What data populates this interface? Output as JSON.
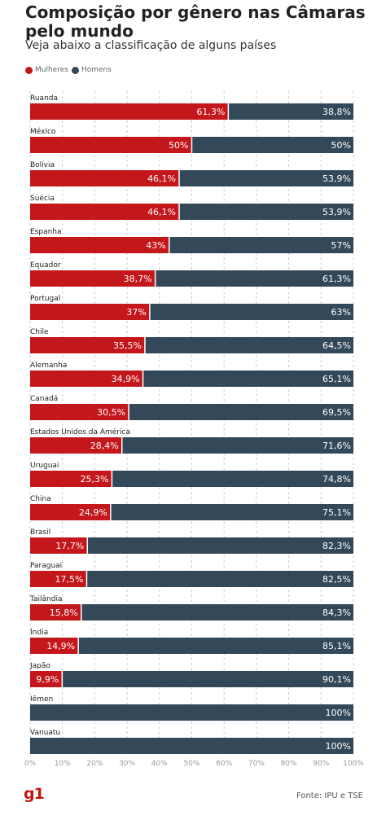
{
  "header": {
    "title": "Composição por gênero nas Câmaras pelo mundo",
    "subtitle": "Veja abaixo a classificação de alguns países"
  },
  "legend": {
    "women_label": "Mulheres",
    "men_label": "Homens"
  },
  "colors": {
    "women": "#c4171c",
    "men": "#33495a",
    "grid": "#cccccc"
  },
  "footer": {
    "logo": "g1",
    "source": "Fonte: IPU e TSE"
  },
  "chart_data": {
    "type": "bar",
    "orientation": "horizontal",
    "stacked": true,
    "title": "Composição por gênero nas Câmaras pelo mundo",
    "subtitle": "Veja abaixo a classificação de alguns países",
    "xlim": [
      0,
      100
    ],
    "x_ticks": [
      "0%",
      "10%",
      "20%",
      "30%",
      "40%",
      "50%",
      "60%",
      "70%",
      "80%",
      "90%",
      "100%"
    ],
    "grid": true,
    "legend_position": "top-left",
    "categories": [
      "Ruanda",
      "México",
      "Bolívia",
      "Suécia",
      "Espanha",
      "Equador",
      "Portugal",
      "Chile",
      "Alemanha",
      "Canadá",
      "Estados Unidos da América",
      "Uruguai",
      "China",
      "Brasil",
      "Paraguai",
      "Tailândia",
      "Índia",
      "Japão",
      "Iêmen",
      "Vanuatu"
    ],
    "series": [
      {
        "name": "Mulheres",
        "values": [
          61.3,
          50,
          46.1,
          46.1,
          43,
          38.7,
          37,
          35.5,
          34.9,
          30.5,
          28.4,
          25.3,
          24.9,
          17.7,
          17.5,
          15.8,
          14.9,
          9.9,
          0,
          0
        ],
        "labels": [
          "61,3%",
          "50%",
          "46,1%",
          "46,1%",
          "43%",
          "38,7%",
          "37%",
          "35,5%",
          "34,9%",
          "30,5%",
          "28,4%",
          "25,3%",
          "24,9%",
          "17,7%",
          "17,5%",
          "15,8%",
          "14,9%",
          "9,9%",
          "",
          ""
        ]
      },
      {
        "name": "Homens",
        "values": [
          38.8,
          50,
          53.9,
          53.9,
          57,
          61.3,
          63,
          64.5,
          65.1,
          69.5,
          71.6,
          74.8,
          75.1,
          82.3,
          82.5,
          84.3,
          85.1,
          90.1,
          100,
          100
        ],
        "labels": [
          "38,8%",
          "50%",
          "53,9%",
          "53,9%",
          "57%",
          "61,3%",
          "63%",
          "64,5%",
          "65,1%",
          "69,5%",
          "71,6%",
          "74,8%",
          "75,1%",
          "82,3%",
          "82,5%",
          "84,3%",
          "85,1%",
          "90,1%",
          "100%",
          "100%"
        ]
      }
    ]
  }
}
